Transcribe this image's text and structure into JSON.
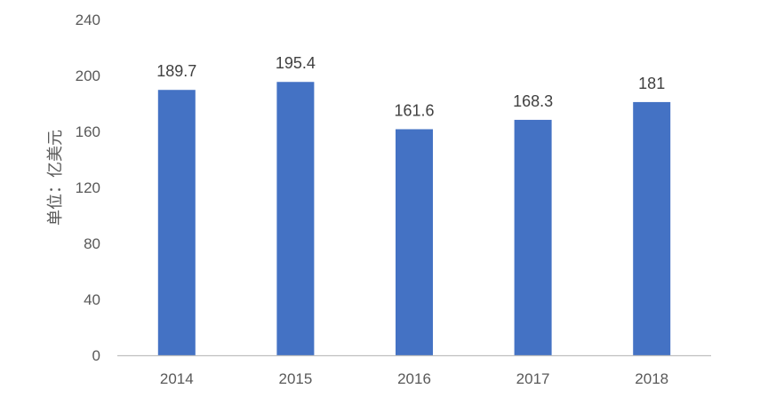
{
  "chart_data": {
    "type": "bar",
    "categories": [
      "2014",
      "2015",
      "2016",
      "2017",
      "2018"
    ],
    "values": [
      189.7,
      195.4,
      161.6,
      168.3,
      181
    ],
    "data_labels": [
      "189.7",
      "195.4",
      "161.6",
      "168.3",
      "181"
    ],
    "title": "",
    "xlabel": "",
    "ylabel": "单位：亿美元",
    "ylim": [
      0,
      240
    ],
    "yticks": [
      "0",
      "40",
      "80",
      "120",
      "160",
      "200",
      "240"
    ],
    "grid": false,
    "legend": "none",
    "bar_color": "#4472C4",
    "axis_color": "#BFBFBF"
  }
}
